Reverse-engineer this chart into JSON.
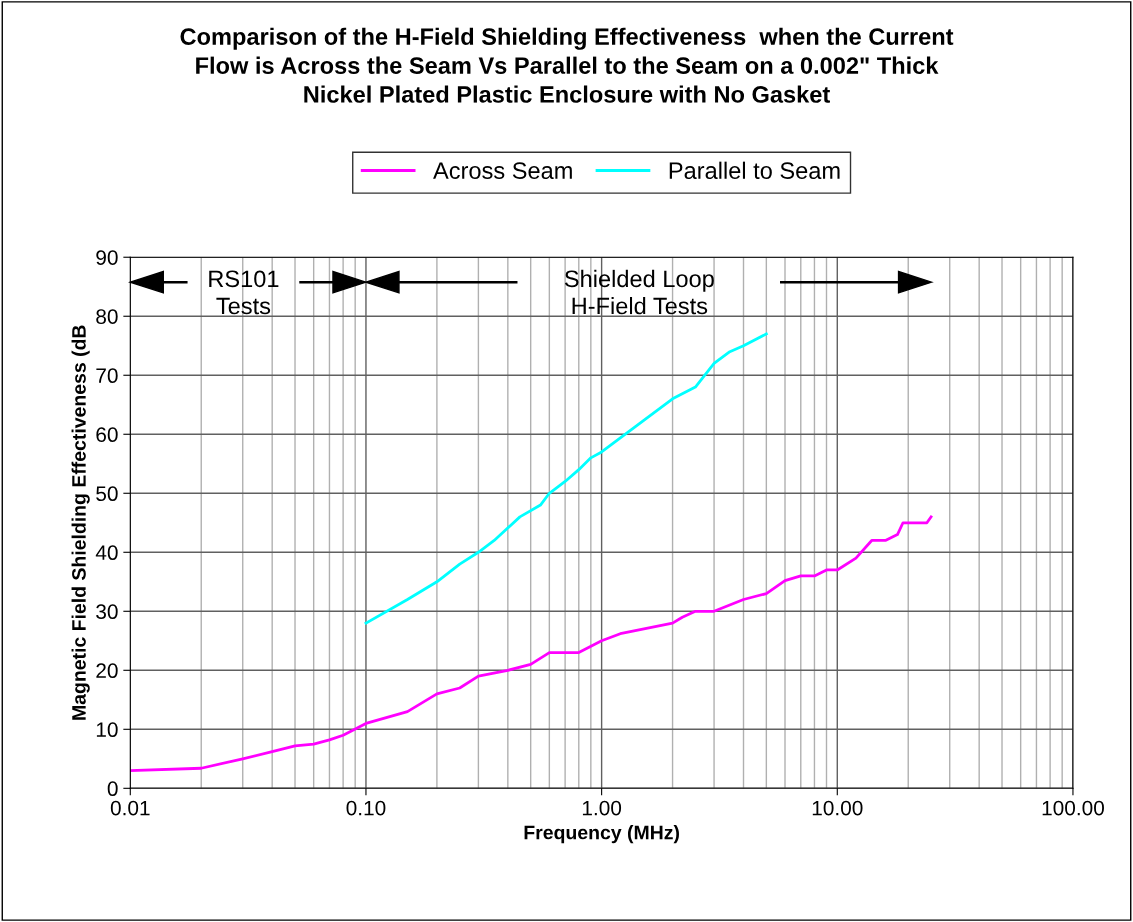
{
  "chart_data": {
    "type": "line",
    "title": "Comparison of the H-Field Shielding Effectiveness  when the Current\nFlow is Across the Seam Vs Parallel to the Seam on a 0.002\" Thick\nNickel Plated Plastic Enclosure with No Gasket",
    "xlabel": "Frequency (MHz)",
    "ylabel": "Magnetic Field Shielding Effectiveness (dB",
    "log": "x",
    "xlim": [
      0.01,
      100
    ],
    "xticks": [
      0.01,
      {
        "value": 0.1,
        "label": "0.10"
      },
      {
        "value": 1,
        "label": "1.00"
      },
      {
        "value": 10,
        "label": "10.00"
      },
      {
        "value": 100,
        "label": "100.00"
      }
    ],
    "ylim": [
      0,
      90
    ],
    "yticks": [
      0,
      10,
      20,
      30,
      40,
      50,
      60,
      70,
      80,
      90
    ],
    "grid": true,
    "legend": "top",
    "marker": "none",
    "line_style": "solid",
    "annotations": [
      "RS101\nTests",
      "Shielded Loop\nH-Field Tests"
    ],
    "series": [
      {
        "name": "Across Seam",
        "color": "#ff00ff",
        "x": [
          0.01,
          0.02,
          0.03,
          0.04,
          0.05,
          0.06,
          0.07,
          0.08,
          0.1,
          0.15,
          0.2,
          0.25,
          0.3,
          0.4,
          0.5,
          0.6,
          0.8,
          1.0,
          1.2,
          2,
          2.2,
          2.5,
          3,
          4,
          5,
          6,
          7,
          8,
          9,
          10,
          12,
          14,
          16,
          18,
          19,
          24,
          25
        ],
        "values": [
          3,
          3.4,
          5,
          6.2,
          7.2,
          7.5,
          8.2,
          9,
          11,
          13,
          16,
          17,
          19,
          20,
          21,
          23,
          23,
          25,
          26.2,
          28,
          29,
          30,
          30,
          32,
          33,
          35.2,
          36,
          36,
          37,
          37,
          39,
          42,
          42,
          43,
          45,
          45,
          46
        ]
      },
      {
        "name": "Parallel to Seam",
        "color": "#00ffff",
        "x": [
          0.1,
          0.15,
          0.2,
          0.25,
          0.3,
          0.35,
          0.45,
          0.55,
          0.6,
          0.7,
          0.8,
          0.9,
          1,
          2,
          2.5,
          3,
          3.5,
          4,
          5
        ],
        "values": [
          28,
          32,
          35,
          38,
          40,
          42,
          46,
          48,
          50,
          52,
          54,
          56,
          57,
          66,
          68,
          72,
          74,
          75,
          77
        ]
      }
    ]
  }
}
